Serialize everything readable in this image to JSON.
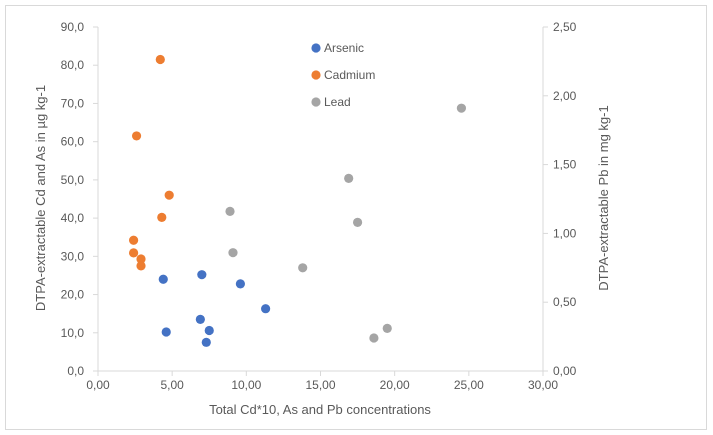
{
  "chart_data": {
    "type": "scatter",
    "title": "",
    "xlabel": "Total Cd*10, As and Pb concentrations",
    "ylabel": "DTPA-extractable Cd and  As in µg kg-1",
    "y2label": "DTPA-extractable Pb in mg kg-1",
    "xlim": [
      0,
      30
    ],
    "ylim": [
      0,
      90
    ],
    "y2lim": [
      0,
      2.5
    ],
    "x_ticks": [
      "0,00",
      "5,00",
      "10,00",
      "15,00",
      "20,00",
      "25,00",
      "30,00"
    ],
    "y_ticks": [
      "0,0",
      "10,0",
      "20,0",
      "30,0",
      "40,0",
      "50,0",
      "60,0",
      "70,0",
      "80,0",
      "90,0"
    ],
    "y2_ticks": [
      "0,00",
      "0,50",
      "1,00",
      "1,50",
      "2,00",
      "2,50"
    ],
    "grid": false,
    "legend_position": "top-center",
    "series": [
      {
        "name": "Arsenic",
        "axis": "left",
        "color": "#4472C4",
        "points": [
          {
            "x": 4.4,
            "y": 24.0
          },
          {
            "x": 4.6,
            "y": 10.2
          },
          {
            "x": 7.0,
            "y": 25.2
          },
          {
            "x": 6.9,
            "y": 13.5
          },
          {
            "x": 7.3,
            "y": 7.5
          },
          {
            "x": 7.5,
            "y": 10.6
          },
          {
            "x": 9.6,
            "y": 22.8
          },
          {
            "x": 11.3,
            "y": 16.3
          }
        ]
      },
      {
        "name": "Cadmium",
        "axis": "left",
        "color": "#ED7D31",
        "points": [
          {
            "x": 4.2,
            "y": 81.5
          },
          {
            "x": 2.6,
            "y": 61.5
          },
          {
            "x": 4.8,
            "y": 46.0
          },
          {
            "x": 4.3,
            "y": 40.2
          },
          {
            "x": 2.4,
            "y": 34.2
          },
          {
            "x": 2.4,
            "y": 30.9
          },
          {
            "x": 2.9,
            "y": 29.3
          },
          {
            "x": 2.9,
            "y": 27.5
          }
        ]
      },
      {
        "name": "Lead",
        "axis": "right",
        "color": "#A5A5A5",
        "points": [
          {
            "x": 24.5,
            "y": 1.91
          },
          {
            "x": 16.9,
            "y": 1.4
          },
          {
            "x": 8.9,
            "y": 1.16
          },
          {
            "x": 17.5,
            "y": 1.08
          },
          {
            "x": 9.1,
            "y": 0.86
          },
          {
            "x": 13.8,
            "y": 0.75
          },
          {
            "x": 19.5,
            "y": 0.31
          },
          {
            "x": 18.6,
            "y": 0.24
          }
        ]
      }
    ]
  }
}
